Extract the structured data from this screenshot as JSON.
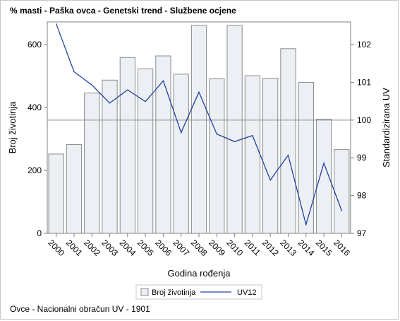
{
  "header": {
    "title": "% masti - Paška ovca - Genetski trend - Službene ocjene"
  },
  "footer": {
    "note": "Ovce - Nacionalni obračun UV - 1901"
  },
  "colors": {
    "bar_fill": "#eceff4",
    "bar_stroke": "#8a8a8a",
    "line": "#2342a0",
    "reference_line": "#8c8c8c",
    "axis": "#7f7f7f"
  },
  "chart_data": {
    "type": "bar",
    "title": "% masti - Paška ovca - Genetski trend - Službene ocjene",
    "xlabel": "Godina rođenja",
    "ylabel": "Broj životinja",
    "y2label": "Standardizirana UV",
    "categories": [
      "2000",
      "2001",
      "2002",
      "2003",
      "2004",
      "2005",
      "2006",
      "2007",
      "2008",
      "2009",
      "2010",
      "2011",
      "2012",
      "2013",
      "2014",
      "2015",
      "2016"
    ],
    "ylim": [
      0,
      672
    ],
    "yticks": [
      0,
      200,
      400,
      600
    ],
    "y2lim": [
      97,
      102.6
    ],
    "y2ticks": [
      97,
      98,
      99,
      100,
      101,
      102
    ],
    "reference_line_y2": 100,
    "series": [
      {
        "name": "Broj životinja",
        "type": "bar",
        "axis": "left",
        "values": [
          252,
          282,
          446,
          487,
          559,
          523,
          564,
          506,
          661,
          491,
          661,
          501,
          493,
          587,
          480,
          363,
          266
        ]
      },
      {
        "name": "UV12",
        "type": "line",
        "axis": "right",
        "values": [
          102.55,
          101.28,
          100.93,
          100.45,
          100.8,
          100.49,
          101.04,
          99.67,
          100.74,
          99.63,
          99.43,
          99.59,
          98.41,
          99.07,
          97.23,
          98.86,
          97.6
        ]
      }
    ],
    "legend": [
      "Broj životinja",
      "UV12"
    ],
    "legend_position": "bottom",
    "grid": false
  }
}
